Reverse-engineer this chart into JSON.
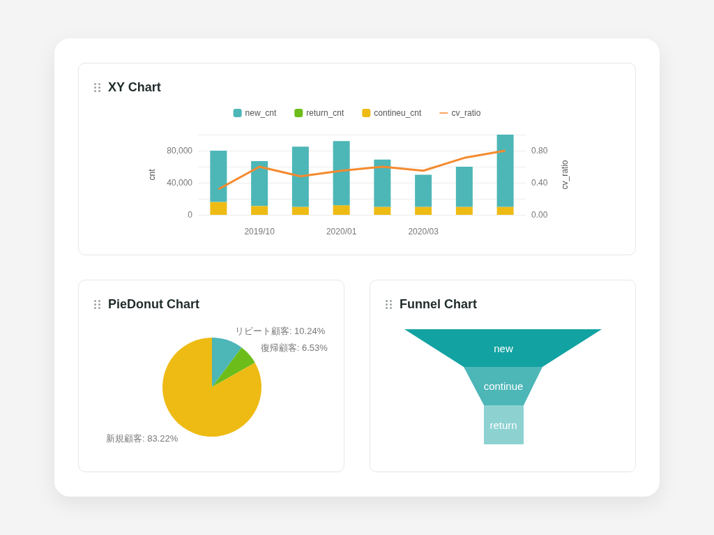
{
  "chart_data": [
    {
      "type": "bar",
      "title": "XY Chart",
      "ylabel": "cnt",
      "y2label": "cv_ratio",
      "stacked": true,
      "categories": [
        null,
        "2019/10",
        null,
        "2020/01",
        null,
        "2020/03",
        null,
        null
      ],
      "series": [
        {
          "name": "contineu_cnt",
          "color": "#eebb14",
          "values": [
            16000,
            11000,
            10000,
            12000,
            10000,
            10000,
            10000,
            10000
          ]
        },
        {
          "name": "return_cnt",
          "color": "#6cbd1a",
          "values": [
            0,
            0,
            0,
            0,
            0,
            0,
            0,
            0
          ]
        },
        {
          "name": "new_cnt",
          "color": "#4db6b7",
          "values": [
            64000,
            56000,
            75000,
            80000,
            59000,
            40000,
            50000,
            90000
          ]
        },
        {
          "name": "cv_ratio",
          "type": "line",
          "axis": "y2",
          "color": "#f58a2e",
          "values": [
            0.32,
            0.6,
            0.48,
            0.55,
            0.6,
            0.55,
            0.71,
            0.8
          ]
        }
      ],
      "ylim": [
        0,
        100000
      ],
      "yticks": [
        {
          "value": 0,
          "label": "0"
        },
        {
          "value": 20000,
          "label": null
        },
        {
          "value": 40000,
          "label": "40,000"
        },
        {
          "value": 60000,
          "label": null
        },
        {
          "value": 80000,
          "label": "80,000"
        },
        {
          "value": 100000,
          "label": null
        }
      ],
      "y2lim": [
        0,
        1
      ],
      "y2ticks": [
        {
          "value": 0,
          "label": "0.00"
        },
        {
          "value": 0.2,
          "label": null
        },
        {
          "value": 0.4,
          "label": "0.40"
        },
        {
          "value": 0.6,
          "label": null
        },
        {
          "value": 0.8,
          "label": "0.80"
        },
        {
          "value": 1,
          "label": null
        }
      ],
      "grid": "y",
      "legend": "top",
      "marker": "none"
    },
    {
      "type": "pie",
      "title": "PieDonut Chart",
      "categories": [
        "リピート顧客",
        "復帰顧客",
        "新規顧客"
      ],
      "values": [
        10.24,
        6.53,
        83.22
      ],
      "colors": [
        "#4db6b7",
        "#6cbd1a",
        "#eebb14"
      ],
      "value_labels": [
        "10.24%",
        "6.53%",
        "83.22%"
      ]
    },
    {
      "type": "other",
      "title": "Funnel Chart",
      "categories": [
        "new",
        "continue",
        "return"
      ],
      "colors": [
        "#13a2a2",
        "#4db6b7",
        "#8dd1d1"
      ]
    }
  ]
}
